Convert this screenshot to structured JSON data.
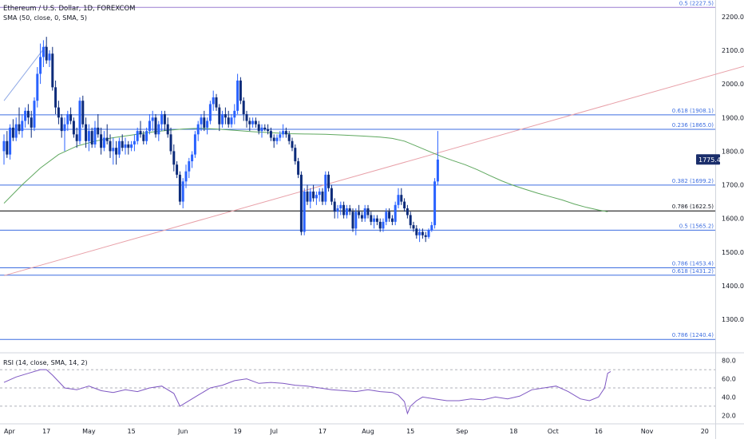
{
  "header": {
    "symbol_line": "Ethereum / U.S. Dollar, 1D, FOREXCOM",
    "sma_line": "SMA (50, close, 0, SMA, 5)",
    "rsi_line": "RSI (14, close, SMA, 14, 2)"
  },
  "price_badge": {
    "text": "1775.4",
    "value": 1775.4
  },
  "colors": {
    "bull": "#2962ff",
    "bear": "#0c2b7a",
    "sma": "#5fa85f",
    "fib_line": "#3d6ee0",
    "fib_top": "#9b7fd0",
    "trend_up": "#e8a0a8",
    "trend_blue": "#8fa9e6",
    "black_line": "#000000",
    "rsi_line": "#7e57c2",
    "badge_bg": "#1a2e6b"
  },
  "chart_data": {
    "type": "candlestick",
    "title": "Ethereum / U.S. Dollar, 1D, FOREXCOM",
    "price_axis": {
      "ylim": [
        1210,
        2240
      ],
      "ticks": [
        1300,
        1400,
        1500,
        1600,
        1700,
        1800,
        1900,
        2000,
        2100,
        2200
      ]
    },
    "x_ticks": [
      {
        "label": "Apr",
        "i": 0
      },
      {
        "label": "17",
        "i": 14
      },
      {
        "label": "May",
        "i": 28
      },
      {
        "label": "15",
        "i": 42
      },
      {
        "label": "Jun",
        "i": 59
      },
      {
        "label": "19",
        "i": 77
      },
      {
        "label": "Jul",
        "i": 89
      },
      {
        "label": "17",
        "i": 105
      },
      {
        "label": "Aug",
        "i": 120
      },
      {
        "label": "15",
        "i": 134
      },
      {
        "label": "Sep",
        "i": 151
      },
      {
        "label": "18",
        "i": 168
      },
      {
        "label": "Oct",
        "i": 181
      },
      {
        "label": "16",
        "i": 196
      },
      {
        "label": "Nov",
        "i": 212
      },
      {
        "label": "20",
        "i": 231
      }
    ],
    "fib_levels": [
      {
        "label": "0.5 (2227.5)",
        "value": 2227.5,
        "style": "top"
      },
      {
        "label": "0.618 (1908.1)",
        "value": 1908.1,
        "style": "fib"
      },
      {
        "label": "0.236 (1865.0)",
        "value": 1865.0,
        "style": "fib"
      },
      {
        "label": "0.382 (1699.2)",
        "value": 1699.2,
        "style": "fib"
      },
      {
        "label": "0.786 (1622.5)",
        "value": 1622.5,
        "style": "black"
      },
      {
        "label": "0.5 (1565.2)",
        "value": 1565.2,
        "style": "fib"
      },
      {
        "label": "0.786 (1453.4)",
        "value": 1453.4,
        "style": "fib"
      },
      {
        "label": "0.618 (1431.2)",
        "value": 1431.2,
        "style": "fib"
      },
      {
        "label": "0.786 (1240.4)",
        "value": 1240.4,
        "style": "fib"
      }
    ],
    "trendlines": [
      {
        "color": "trend_up",
        "p1": {
          "i": 0,
          "v": 1430
        },
        "p2": {
          "i": 250,
          "v": 2068
        }
      },
      {
        "color": "trend_blue",
        "p1": {
          "i": 0,
          "v": 1950
        },
        "p2": {
          "i": 14,
          "v": 2115
        }
      }
    ],
    "candles": [
      [
        1800,
        1850,
        1760,
        1830
      ],
      [
        1830,
        1860,
        1780,
        1790
      ],
      [
        1790,
        1880,
        1775,
        1870
      ],
      [
        1870,
        1895,
        1830,
        1840
      ],
      [
        1840,
        1900,
        1830,
        1880
      ],
      [
        1880,
        1930,
        1850,
        1860
      ],
      [
        1860,
        1910,
        1840,
        1890
      ],
      [
        1890,
        1930,
        1870,
        1920
      ],
      [
        1920,
        1940,
        1880,
        1900
      ],
      [
        1900,
        1920,
        1840,
        1870
      ],
      [
        1870,
        1960,
        1860,
        1950
      ],
      [
        1950,
        2050,
        1930,
        2030
      ],
      [
        2030,
        2120,
        2000,
        2080
      ],
      [
        2080,
        2130,
        2050,
        2110
      ],
      [
        2110,
        2140,
        2060,
        2070
      ],
      [
        2070,
        2100,
        2050,
        2090
      ],
      [
        2090,
        2110,
        1980,
        1990
      ],
      [
        1990,
        2010,
        1910,
        1930
      ],
      [
        1930,
        1950,
        1880,
        1900
      ],
      [
        1900,
        1910,
        1840,
        1860
      ],
      [
        1860,
        1900,
        1800,
        1880
      ],
      [
        1880,
        1920,
        1860,
        1910
      ],
      [
        1910,
        1930,
        1880,
        1890
      ],
      [
        1890,
        1900,
        1840,
        1850
      ],
      [
        1850,
        1870,
        1810,
        1830
      ],
      [
        1830,
        1960,
        1820,
        1950
      ],
      [
        1950,
        1965,
        1870,
        1880
      ],
      [
        1880,
        1900,
        1810,
        1830
      ],
      [
        1830,
        1880,
        1800,
        1860
      ],
      [
        1860,
        1870,
        1810,
        1820
      ],
      [
        1820,
        1890,
        1810,
        1870
      ],
      [
        1870,
        1910,
        1840,
        1850
      ],
      [
        1850,
        1870,
        1790,
        1810
      ],
      [
        1810,
        1860,
        1800,
        1840
      ],
      [
        1840,
        1880,
        1820,
        1830
      ],
      [
        1830,
        1850,
        1780,
        1800
      ],
      [
        1800,
        1840,
        1760,
        1810
      ],
      [
        1810,
        1830,
        1760,
        1790
      ],
      [
        1790,
        1840,
        1780,
        1830
      ],
      [
        1830,
        1850,
        1800,
        1810
      ],
      [
        1810,
        1840,
        1790,
        1820
      ],
      [
        1820,
        1830,
        1790,
        1810
      ],
      [
        1810,
        1830,
        1800,
        1820
      ],
      [
        1820,
        1850,
        1800,
        1830
      ],
      [
        1830,
        1870,
        1820,
        1860
      ],
      [
        1860,
        1890,
        1840,
        1850
      ],
      [
        1850,
        1860,
        1820,
        1830
      ],
      [
        1830,
        1870,
        1820,
        1860
      ],
      [
        1860,
        1910,
        1850,
        1890
      ],
      [
        1890,
        1920,
        1860,
        1900
      ],
      [
        1900,
        1910,
        1840,
        1850
      ],
      [
        1850,
        1890,
        1830,
        1880
      ],
      [
        1880,
        1920,
        1860,
        1910
      ],
      [
        1910,
        1920,
        1860,
        1880
      ],
      [
        1880,
        1900,
        1840,
        1850
      ],
      [
        1850,
        1870,
        1790,
        1800
      ],
      [
        1800,
        1820,
        1740,
        1760
      ],
      [
        1760,
        1770,
        1720,
        1730
      ],
      [
        1730,
        1740,
        1640,
        1650
      ],
      [
        1650,
        1720,
        1630,
        1710
      ],
      [
        1710,
        1760,
        1690,
        1740
      ],
      [
        1740,
        1780,
        1720,
        1770
      ],
      [
        1770,
        1800,
        1750,
        1790
      ],
      [
        1790,
        1860,
        1780,
        1850
      ],
      [
        1850,
        1890,
        1830,
        1880
      ],
      [
        1880,
        1910,
        1860,
        1900
      ],
      [
        1900,
        1920,
        1860,
        1870
      ],
      [
        1870,
        1900,
        1850,
        1890
      ],
      [
        1890,
        1950,
        1880,
        1940
      ],
      [
        1940,
        1980,
        1920,
        1960
      ],
      [
        1960,
        1970,
        1920,
        1930
      ],
      [
        1930,
        1940,
        1860,
        1880
      ],
      [
        1880,
        1920,
        1870,
        1910
      ],
      [
        1910,
        1930,
        1880,
        1900
      ],
      [
        1900,
        1920,
        1870,
        1880
      ],
      [
        1880,
        1910,
        1870,
        1900
      ],
      [
        1900,
        1940,
        1880,
        1920
      ],
      [
        1920,
        2030,
        1910,
        2010
      ],
      [
        2010,
        2020,
        1940,
        1950
      ],
      [
        1950,
        1960,
        1890,
        1910
      ],
      [
        1910,
        1920,
        1870,
        1890
      ],
      [
        1890,
        1900,
        1860,
        1880
      ],
      [
        1880,
        1900,
        1870,
        1890
      ],
      [
        1890,
        1900,
        1870,
        1880
      ],
      [
        1880,
        1890,
        1850,
        1860
      ],
      [
        1860,
        1880,
        1840,
        1870
      ],
      [
        1870,
        1880,
        1860,
        1865
      ],
      [
        1865,
        1880,
        1850,
        1860
      ],
      [
        1860,
        1870,
        1830,
        1840
      ],
      [
        1840,
        1850,
        1810,
        1830
      ],
      [
        1830,
        1850,
        1820,
        1840
      ],
      [
        1840,
        1860,
        1830,
        1850
      ],
      [
        1850,
        1880,
        1840,
        1860
      ],
      [
        1860,
        1870,
        1840,
        1850
      ],
      [
        1850,
        1860,
        1820,
        1830
      ],
      [
        1830,
        1840,
        1800,
        1810
      ],
      [
        1810,
        1820,
        1760,
        1770
      ],
      [
        1770,
        1780,
        1720,
        1730
      ],
      [
        1730,
        1740,
        1550,
        1560
      ],
      [
        1560,
        1690,
        1550,
        1680
      ],
      [
        1680,
        1700,
        1640,
        1650
      ],
      [
        1650,
        1690,
        1630,
        1680
      ],
      [
        1680,
        1700,
        1650,
        1660
      ],
      [
        1660,
        1680,
        1640,
        1670
      ],
      [
        1670,
        1690,
        1650,
        1680
      ],
      [
        1680,
        1690,
        1640,
        1650
      ],
      [
        1650,
        1740,
        1640,
        1730
      ],
      [
        1730,
        1740,
        1680,
        1690
      ],
      [
        1690,
        1700,
        1640,
        1650
      ],
      [
        1650,
        1660,
        1600,
        1620
      ],
      [
        1620,
        1640,
        1600,
        1630
      ],
      [
        1630,
        1650,
        1610,
        1640
      ],
      [
        1640,
        1650,
        1600,
        1610
      ],
      [
        1610,
        1640,
        1600,
        1630
      ],
      [
        1630,
        1640,
        1610,
        1620
      ],
      [
        1620,
        1630,
        1560,
        1570
      ],
      [
        1570,
        1630,
        1550,
        1620
      ],
      [
        1620,
        1640,
        1600,
        1610
      ],
      [
        1610,
        1620,
        1590,
        1600
      ],
      [
        1600,
        1640,
        1590,
        1630
      ],
      [
        1630,
        1640,
        1600,
        1610
      ],
      [
        1610,
        1620,
        1580,
        1590
      ],
      [
        1590,
        1610,
        1570,
        1600
      ],
      [
        1600,
        1610,
        1580,
        1590
      ],
      [
        1590,
        1600,
        1560,
        1570
      ],
      [
        1570,
        1600,
        1560,
        1590
      ],
      [
        1590,
        1630,
        1580,
        1620
      ],
      [
        1620,
        1630,
        1590,
        1600
      ],
      [
        1600,
        1610,
        1580,
        1590
      ],
      [
        1590,
        1650,
        1580,
        1640
      ],
      [
        1640,
        1690,
        1630,
        1670
      ],
      [
        1670,
        1690,
        1640,
        1650
      ],
      [
        1650,
        1660,
        1620,
        1630
      ],
      [
        1630,
        1640,
        1600,
        1610
      ],
      [
        1610,
        1620,
        1570,
        1580
      ],
      [
        1580,
        1590,
        1560,
        1570
      ],
      [
        1570,
        1580,
        1540,
        1550
      ],
      [
        1550,
        1570,
        1530,
        1560
      ],
      [
        1560,
        1570,
        1540,
        1550
      ],
      [
        1550,
        1560,
        1530,
        1545
      ],
      [
        1545,
        1570,
        1540,
        1565
      ],
      [
        1565,
        1590,
        1560,
        1580
      ],
      [
        1580,
        1720,
        1570,
        1710
      ],
      [
        1710,
        1860,
        1700,
        1775
      ]
    ],
    "sma": [
      [
        0,
        1645
      ],
      [
        6,
        1700
      ],
      [
        12,
        1750
      ],
      [
        18,
        1790
      ],
      [
        24,
        1815
      ],
      [
        30,
        1830
      ],
      [
        36,
        1840
      ],
      [
        42,
        1848
      ],
      [
        48,
        1856
      ],
      [
        54,
        1862
      ],
      [
        59,
        1866
      ],
      [
        64,
        1868
      ],
      [
        70,
        1866
      ],
      [
        76,
        1862
      ],
      [
        82,
        1858
      ],
      [
        88,
        1855
      ],
      [
        94,
        1852
      ],
      [
        100,
        1851
      ],
      [
        106,
        1850
      ],
      [
        112,
        1848
      ],
      [
        118,
        1845
      ],
      [
        124,
        1842
      ],
      [
        128,
        1838
      ],
      [
        132,
        1830
      ],
      [
        136,
        1815
      ],
      [
        140,
        1800
      ],
      [
        144,
        1785
      ],
      [
        148,
        1772
      ],
      [
        152,
        1760
      ],
      [
        156,
        1745
      ],
      [
        160,
        1728
      ],
      [
        164,
        1712
      ],
      [
        168,
        1698
      ],
      [
        172,
        1686
      ],
      [
        176,
        1675
      ],
      [
        180,
        1665
      ],
      [
        184,
        1655
      ],
      [
        188,
        1643
      ],
      [
        192,
        1633
      ],
      [
        196,
        1625
      ],
      [
        199,
        1620
      ]
    ],
    "rsi": {
      "ylim": [
        15,
        85
      ],
      "ticks": [
        20,
        40,
        60,
        80
      ],
      "bands": [
        30,
        50,
        70
      ],
      "points": [
        [
          0,
          56
        ],
        [
          4,
          62
        ],
        [
          8,
          66
        ],
        [
          12,
          70
        ],
        [
          14,
          70
        ],
        [
          16,
          64
        ],
        [
          20,
          50
        ],
        [
          24,
          48
        ],
        [
          28,
          52
        ],
        [
          32,
          47
        ],
        [
          36,
          45
        ],
        [
          40,
          48
        ],
        [
          44,
          46
        ],
        [
          48,
          50
        ],
        [
          52,
          52
        ],
        [
          56,
          44
        ],
        [
          58,
          30
        ],
        [
          60,
          34
        ],
        [
          64,
          42
        ],
        [
          68,
          50
        ],
        [
          72,
          53
        ],
        [
          76,
          58
        ],
        [
          80,
          60
        ],
        [
          84,
          55
        ],
        [
          88,
          56
        ],
        [
          92,
          55
        ],
        [
          96,
          53
        ],
        [
          100,
          52
        ],
        [
          104,
          50
        ],
        [
          108,
          48
        ],
        [
          112,
          47
        ],
        [
          116,
          46
        ],
        [
          120,
          48
        ],
        [
          124,
          46
        ],
        [
          128,
          45
        ],
        [
          130,
          42
        ],
        [
          132,
          35
        ],
        [
          133,
          22
        ],
        [
          134,
          30
        ],
        [
          136,
          36
        ],
        [
          138,
          40
        ],
        [
          142,
          38
        ],
        [
          146,
          36
        ],
        [
          150,
          36
        ],
        [
          154,
          38
        ],
        [
          158,
          37
        ],
        [
          162,
          40
        ],
        [
          166,
          38
        ],
        [
          170,
          41
        ],
        [
          174,
          48
        ],
        [
          178,
          50
        ],
        [
          182,
          52
        ],
        [
          186,
          46
        ],
        [
          190,
          38
        ],
        [
          193,
          36
        ],
        [
          196,
          40
        ],
        [
          198,
          50
        ],
        [
          199,
          66
        ],
        [
          200,
          68
        ]
      ]
    }
  }
}
